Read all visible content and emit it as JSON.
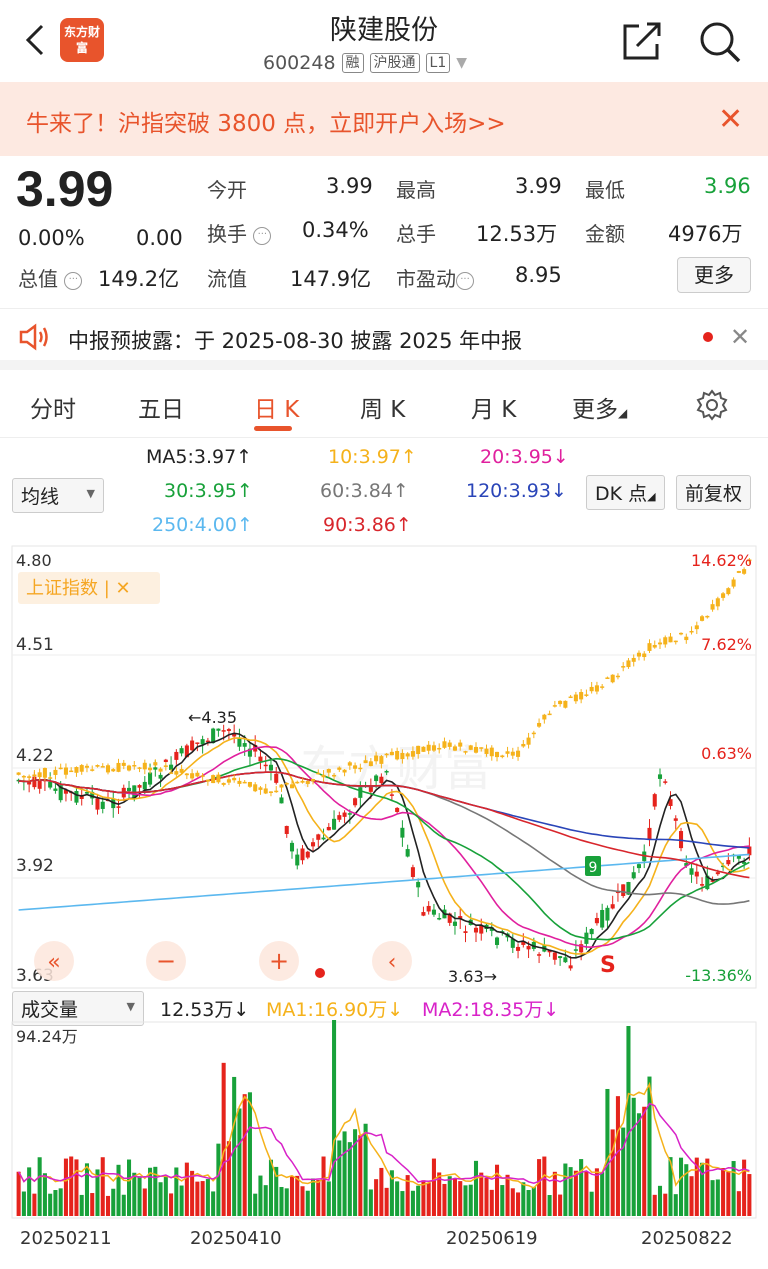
{
  "header": {
    "title": "陕建股份",
    "code": "600248",
    "tags": [
      "融",
      "沪股通",
      "L1"
    ],
    "logo_text": "东方财富"
  },
  "promo": {
    "text": "牛来了！沪指突破 3800 点，立即开户入场>>"
  },
  "quote": {
    "price": "3.99",
    "change_pct": "0.00%",
    "change": "0.00",
    "total_value_label": "总值",
    "total_value": "149.2亿",
    "fields": [
      {
        "label": "今开",
        "value": "3.99"
      },
      {
        "label": "最高",
        "value": "3.99"
      },
      {
        "label": "最低",
        "value": "3.96"
      },
      {
        "label": "换手",
        "value": "0.34%"
      },
      {
        "label": "总手",
        "value": "12.53万"
      },
      {
        "label": "金额",
        "value": "4976万"
      },
      {
        "label": "流值",
        "value": "147.9亿"
      },
      {
        "label": "市盈动",
        "value": "8.95"
      }
    ],
    "more": "更多"
  },
  "notice": {
    "text": "中报预披露：于 2025-08-30 披露 2025 年中报"
  },
  "tabs": [
    "分时",
    "五日",
    "日 K",
    "周 K",
    "月 K",
    "更多"
  ],
  "active_tab": "日 K",
  "ma_legend": {
    "selector": "均线",
    "items": [
      {
        "text": "MA5:3.97↑",
        "color": "#222222"
      },
      {
        "text": "10:3.97↑",
        "color": "#f5b21b"
      },
      {
        "text": "20:3.95↓",
        "color": "#e0209e"
      },
      {
        "text": "30:3.95↑",
        "color": "#18a13a"
      },
      {
        "text": "60:3.84↑",
        "color": "#777777"
      },
      {
        "text": "120:3.93↓",
        "color": "#2a45b8"
      },
      {
        "text": "250:4.00↑",
        "color": "#5bb8ef"
      },
      {
        "text": "90:3.86↑",
        "color": "#d8262c"
      }
    ],
    "dk_button": "DK 点",
    "adjust_button": "前复权"
  },
  "kline": {
    "y_labels": [
      "4.80",
      "4.51",
      "4.22",
      "3.92",
      "3.63"
    ],
    "pct_labels": [
      {
        "text": "14.62%",
        "color": "#e5231c"
      },
      {
        "text": "7.62%",
        "color": "#e5231c"
      },
      {
        "text": "0.63%",
        "color": "#e5231c"
      },
      {
        "text": "-13.36%",
        "color": "#18a13a"
      }
    ],
    "index_tag": "上证指数 | ✕",
    "high_mark": "←4.35",
    "low_mark": "3.63→",
    "signal_9": "9",
    "signal_s": "S"
  },
  "volume": {
    "selector": "成交量",
    "value": "12.53万↓",
    "ma1": "MA1:16.90万↓",
    "ma2": "MA2:18.35万↓",
    "max_label": "94.24万",
    "dates": [
      "20250211",
      "20250410",
      "20250619",
      "20250822"
    ]
  },
  "colors": {
    "up": "#e5231c",
    "down": "#18a13a",
    "accent": "#e8542c",
    "index": "#f5b21b"
  }
}
